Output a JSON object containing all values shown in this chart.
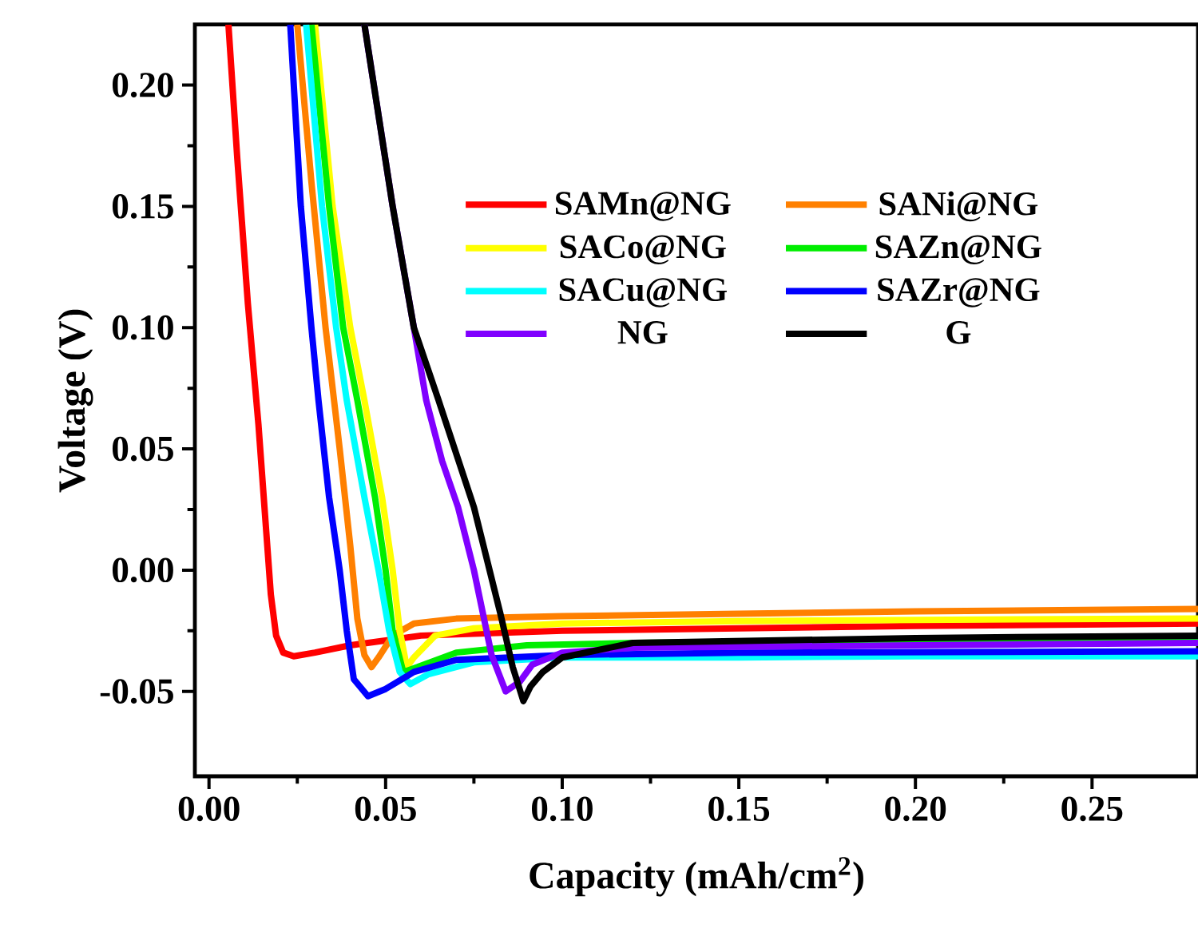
{
  "chart_data": {
    "type": "line",
    "xlabel": "Capacity (mAh/cm$^{2}$)",
    "ylabel": "Voltage (V)",
    "xlim": [
      -0.004,
      0.28
    ],
    "ylim": [
      -0.085,
      0.225
    ],
    "xticks": [
      {
        "value": 0,
        "label": "0.00"
      },
      {
        "value": 0.05,
        "label": "0.05"
      },
      {
        "value": 0.1,
        "label": "0.10"
      },
      {
        "value": 0.15,
        "label": "0.15"
      },
      {
        "value": 0.2,
        "label": "0.20"
      },
      {
        "value": 0.25,
        "label": "0.25"
      }
    ],
    "yticks": [
      {
        "value": -0.05,
        "label": "-0.05"
      },
      {
        "value": 0,
        "label": "0.00"
      },
      {
        "value": 0.05,
        "label": "0.05"
      },
      {
        "value": 0.1,
        "label": "0.10"
      },
      {
        "value": 0.15,
        "label": "0.15"
      },
      {
        "value": 0.2,
        "label": "0.20"
      }
    ],
    "legend": "top right",
    "series": [
      {
        "name": "SAMn@NG",
        "color": "#ff0000",
        "x": [
          0.0055,
          0.008,
          0.011,
          0.014,
          0.016,
          0.0175,
          0.019,
          0.021,
          0.024,
          0.03,
          0.04,
          0.06,
          0.1,
          0.15,
          0.2,
          0.28
        ],
        "values": [
          0.225,
          0.17,
          0.11,
          0.06,
          0.02,
          -0.01,
          -0.027,
          -0.034,
          -0.0355,
          -0.034,
          -0.031,
          -0.027,
          -0.025,
          -0.024,
          -0.023,
          -0.022
        ]
      },
      {
        "name": "SANi@NG",
        "color": "#ff8000",
        "x": [
          0.025,
          0.029,
          0.033,
          0.037,
          0.04,
          0.042,
          0.044,
          0.046,
          0.048,
          0.052,
          0.058,
          0.07,
          0.1,
          0.15,
          0.2,
          0.28
        ],
        "values": [
          0.225,
          0.16,
          0.1,
          0.05,
          0.01,
          -0.02,
          -0.035,
          -0.04,
          -0.036,
          -0.027,
          -0.022,
          -0.02,
          -0.019,
          -0.018,
          -0.017,
          -0.016
        ]
      },
      {
        "name": "SACo@NG",
        "color": "#ffff00",
        "x": [
          0.03,
          0.035,
          0.04,
          0.044,
          0.049,
          0.052,
          0.054,
          0.056,
          0.058,
          0.064,
          0.075,
          0.1,
          0.15,
          0.2,
          0.28
        ],
        "values": [
          0.225,
          0.15,
          0.1,
          0.07,
          0.03,
          0.0,
          -0.025,
          -0.04,
          -0.036,
          -0.027,
          -0.024,
          -0.022,
          -0.021,
          -0.0205,
          -0.02
        ]
      },
      {
        "name": "SAZn@NG",
        "color": "#00ee00",
        "x": [
          0.029,
          0.034,
          0.038,
          0.042,
          0.047,
          0.05,
          0.052,
          0.055,
          0.059,
          0.07,
          0.09,
          0.12,
          0.2,
          0.28
        ],
        "values": [
          0.225,
          0.15,
          0.1,
          0.07,
          0.03,
          0.0,
          -0.025,
          -0.042,
          -0.04,
          -0.034,
          -0.031,
          -0.03,
          -0.029,
          -0.028
        ]
      },
      {
        "name": "SACu@NG",
        "color": "#00ffff",
        "x": [
          0.0275,
          0.032,
          0.036,
          0.039,
          0.044,
          0.048,
          0.051,
          0.054,
          0.057,
          0.062,
          0.075,
          0.1,
          0.15,
          0.2,
          0.28
        ],
        "values": [
          0.225,
          0.15,
          0.1,
          0.07,
          0.03,
          0.0,
          -0.025,
          -0.042,
          -0.047,
          -0.043,
          -0.038,
          -0.036,
          -0.036,
          -0.0355,
          -0.0355
        ]
      },
      {
        "name": "SAZr@NG",
        "color": "#0000ff",
        "x": [
          0.023,
          0.026,
          0.029,
          0.031,
          0.034,
          0.037,
          0.039,
          0.041,
          0.045,
          0.05,
          0.058,
          0.07,
          0.1,
          0.15,
          0.28
        ],
        "values": [
          0.225,
          0.15,
          0.1,
          0.07,
          0.03,
          0.0,
          -0.025,
          -0.045,
          -0.052,
          -0.049,
          -0.042,
          -0.037,
          -0.035,
          -0.034,
          -0.0335
        ]
      },
      {
        "name": "NG",
        "color": "#8000ff",
        "x": [
          0.044,
          0.052,
          0.058,
          0.0615,
          0.066,
          0.0705,
          0.075,
          0.08,
          0.084,
          0.088,
          0.0915,
          0.1,
          0.12,
          0.2,
          0.28
        ],
        "values": [
          0.225,
          0.15,
          0.1,
          0.07,
          0.045,
          0.026,
          0.0,
          -0.035,
          -0.05,
          -0.046,
          -0.039,
          -0.034,
          -0.032,
          -0.031,
          -0.03
        ]
      },
      {
        "name": "G",
        "color": "#000000",
        "x": [
          0.044,
          0.052,
          0.058,
          0.065,
          0.075,
          0.0825,
          0.086,
          0.089,
          0.091,
          0.0945,
          0.1,
          0.12,
          0.2,
          0.28
        ],
        "values": [
          0.225,
          0.15,
          0.1,
          0.07,
          0.026,
          -0.018,
          -0.04,
          -0.054,
          -0.048,
          -0.042,
          -0.036,
          -0.03,
          -0.028,
          -0.027
        ]
      }
    ]
  }
}
